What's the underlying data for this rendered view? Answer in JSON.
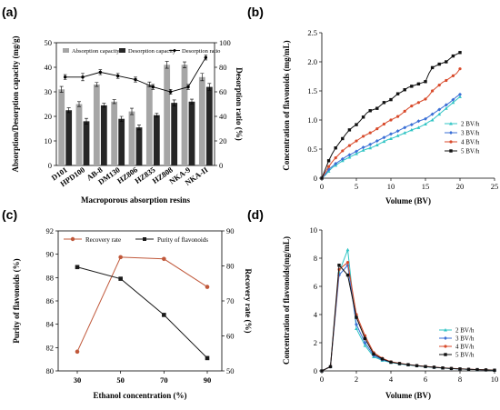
{
  "panels": {
    "a": "(a)",
    "b": "(b)",
    "c": "(c)",
    "d": "(d)"
  },
  "chart_data": [
    {
      "id": "a",
      "type": "bar",
      "categories": [
        "D101",
        "HPD100",
        "AB-8",
        "DM130",
        "HZ806",
        "HZ835",
        "HZ808",
        "NKA-9",
        "NKA-II"
      ],
      "series": [
        {
          "name": "Absorption capacity",
          "kind": "bar",
          "axis": "left",
          "color": "#a6a6a6",
          "values": [
            31,
            25,
            33,
            26,
            22,
            33,
            41,
            41,
            36
          ],
          "errors": [
            1.2,
            1.0,
            0.8,
            0.8,
            1.3,
            1.0,
            1.4,
            1.2,
            1.5
          ]
        },
        {
          "name": "Desorption capacity",
          "kind": "bar",
          "axis": "left",
          "color": "#262626",
          "values": [
            22.5,
            18,
            24.5,
            19,
            15.5,
            20.5,
            25.5,
            26,
            32
          ],
          "errors": [
            1.0,
            1.2,
            0.8,
            1.0,
            1.0,
            0.8,
            1.2,
            1.0,
            1.4
          ]
        },
        {
          "name": "Desorption ratio",
          "kind": "line",
          "axis": "right",
          "color": "#000000",
          "values": [
            72,
            72,
            76,
            73,
            70,
            64,
            60,
            64,
            88
          ],
          "errors": [
            2,
            3,
            2,
            2,
            2,
            2,
            2,
            2,
            2
          ]
        }
      ],
      "xlabel": "Macroporous absorption resins",
      "ylabel": "Absorption/Desorption capacity (mg/g)",
      "y2label": "Desorption ratio (%)",
      "ylim": [
        0,
        50
      ],
      "yticks": [
        "0",
        "10",
        "20",
        "30",
        "40",
        "50"
      ],
      "y2lim": [
        0,
        100
      ],
      "y2ticks": [
        "0",
        "20",
        "40",
        "60",
        "80",
        "100"
      ],
      "legend_placement": "top"
    },
    {
      "id": "b",
      "type": "line",
      "series": [
        {
          "name": "2 BV/h",
          "color": "#2fc4c4",
          "x": [
            0,
            0.5,
            1,
            1.5,
            2,
            2.5,
            3,
            3.5,
            4,
            4.5,
            5,
            5.5,
            6,
            6.5,
            7,
            7.5,
            8,
            8.5,
            9,
            9.5,
            10,
            10.5,
            11,
            11.5,
            12,
            12.5,
            13,
            13.5,
            14,
            14.5,
            15,
            15.5,
            16,
            16.5,
            17,
            17.5,
            18,
            18.5,
            19,
            19.5,
            20
          ],
          "y": [
            0,
            0.05,
            0.12,
            0.18,
            0.22,
            0.26,
            0.3,
            0.33,
            0.36,
            0.39,
            0.42,
            0.45,
            0.48,
            0.5,
            0.52,
            0.54,
            0.57,
            0.6,
            0.63,
            0.66,
            0.68,
            0.7,
            0.73,
            0.75,
            0.78,
            0.8,
            0.83,
            0.85,
            0.87,
            0.9,
            0.93,
            0.97,
            1.0,
            1.05,
            1.1,
            1.15,
            1.2,
            1.25,
            1.3,
            1.35,
            1.4
          ]
        },
        {
          "name": "3 BV/h",
          "color": "#3a6fd6",
          "x": [
            0,
            0.5,
            1,
            1.5,
            2,
            2.5,
            3,
            3.5,
            4,
            4.5,
            5,
            5.5,
            6,
            6.5,
            7,
            7.5,
            8,
            8.5,
            9,
            9.5,
            10,
            10.5,
            11,
            11.5,
            12,
            12.5,
            13,
            13.5,
            14,
            14.5,
            15,
            15.5,
            16,
            16.5,
            17,
            17.5,
            18,
            18.5,
            19,
            19.5,
            20
          ],
          "y": [
            0,
            0.07,
            0.15,
            0.2,
            0.25,
            0.29,
            0.33,
            0.37,
            0.4,
            0.43,
            0.46,
            0.5,
            0.53,
            0.55,
            0.58,
            0.61,
            0.64,
            0.67,
            0.7,
            0.73,
            0.76,
            0.78,
            0.81,
            0.84,
            0.87,
            0.9,
            0.92,
            0.95,
            0.98,
            1.0,
            1.02,
            1.06,
            1.1,
            1.14,
            1.18,
            1.22,
            1.26,
            1.3,
            1.35,
            1.4,
            1.44
          ]
        },
        {
          "name": "4 BV/h",
          "color": "#d84a2b",
          "x": [
            0,
            0.5,
            1,
            1.5,
            2,
            2.5,
            3,
            3.5,
            4,
            4.5,
            5,
            5.5,
            6,
            6.5,
            7,
            7.5,
            8,
            8.5,
            9,
            9.5,
            10,
            10.5,
            11,
            11.5,
            12,
            12.5,
            13,
            13.5,
            14,
            14.5,
            15,
            15.5,
            16,
            16.5,
            17,
            17.5,
            18,
            18.5,
            19,
            19.5,
            20
          ],
          "y": [
            0,
            0.1,
            0.2,
            0.28,
            0.35,
            0.41,
            0.47,
            0.52,
            0.56,
            0.6,
            0.64,
            0.68,
            0.72,
            0.75,
            0.78,
            0.81,
            0.85,
            0.89,
            0.93,
            0.97,
            1.0,
            1.03,
            1.06,
            1.1,
            1.15,
            1.2,
            1.24,
            1.27,
            1.3,
            1.33,
            1.36,
            1.42,
            1.5,
            1.55,
            1.6,
            1.65,
            1.68,
            1.72,
            1.76,
            1.8,
            1.88
          ]
        },
        {
          "name": "5 BV/h",
          "color": "#111111",
          "x": [
            0,
            0.5,
            1,
            1.5,
            2,
            2.5,
            3,
            3.5,
            4,
            4.5,
            5,
            5.5,
            6,
            6.5,
            7,
            7.5,
            8,
            8.5,
            9,
            9.5,
            10,
            10.5,
            11,
            11.5,
            12,
            12.5,
            13,
            13.5,
            14,
            14.5,
            15,
            15.5,
            16,
            16.5,
            17,
            17.5,
            18,
            18.5,
            19,
            19.5,
            20
          ],
          "y": [
            0,
            0.15,
            0.3,
            0.42,
            0.52,
            0.6,
            0.68,
            0.76,
            0.83,
            0.88,
            0.92,
            0.98,
            1.05,
            1.12,
            1.16,
            1.18,
            1.2,
            1.25,
            1.3,
            1.32,
            1.35,
            1.4,
            1.45,
            1.48,
            1.52,
            1.56,
            1.58,
            1.6,
            1.62,
            1.64,
            1.66,
            1.8,
            1.9,
            1.93,
            1.96,
            1.98,
            2.0,
            2.05,
            2.1,
            2.13,
            2.16
          ]
        }
      ],
      "xlabel": "Volume (BV)",
      "ylabel": "Concentration of flavonoids (mg/mL)",
      "xlim": [
        0,
        25
      ],
      "xticks": [
        "0",
        "5",
        "10",
        "15",
        "20",
        "25"
      ],
      "ylim": [
        0,
        2.5
      ],
      "yticks": [
        "0",
        "0.5",
        "1.0",
        "1.5",
        "2.0",
        "2.5"
      ],
      "legend_placement": "right"
    },
    {
      "id": "c",
      "type": "line",
      "categories": [
        "30",
        "50",
        "70",
        "90"
      ],
      "series": [
        {
          "name": "Recovery rate",
          "axis": "right",
          "color": "#c0583a",
          "values": [
            55.5,
            82.5,
            82,
            74
          ]
        },
        {
          "name": "Purity of flavonoids",
          "axis": "left",
          "color": "#1a1a1a",
          "values": [
            88.9,
            87.9,
            84.8,
            81.1
          ]
        }
      ],
      "xlabel": "Ethanol concentration (%)",
      "ylabel": "Purity of flavonoids (%)",
      "y2label": "Recovery rate (%)",
      "ylim": [
        80,
        92
      ],
      "yticks": [
        "80",
        "82",
        "84",
        "86",
        "88",
        "90",
        "92"
      ],
      "y2lim": [
        50,
        90
      ],
      "y2ticks": [
        "50",
        "60",
        "70",
        "80",
        "90"
      ],
      "legend_placement": "top"
    },
    {
      "id": "d",
      "type": "line",
      "series": [
        {
          "name": "2 BV/h",
          "color": "#2fc4c4",
          "x": [
            0,
            0.5,
            1,
            1.5,
            2,
            2.5,
            3,
            3.5,
            4,
            4.5,
            5,
            5.5,
            6,
            6.5,
            7,
            7.5,
            8,
            8.5,
            9,
            9.5,
            10
          ],
          "y": [
            0,
            0.3,
            7.0,
            8.6,
            3.0,
            1.8,
            1.0,
            0.75,
            0.6,
            0.5,
            0.42,
            0.36,
            0.3,
            0.25,
            0.2,
            0.17,
            0.14,
            0.11,
            0.09,
            0.07,
            0.05
          ]
        },
        {
          "name": "3 BV/h",
          "color": "#3a6fd6",
          "x": [
            0,
            0.5,
            1,
            1.5,
            2,
            2.5,
            3,
            3.5,
            4,
            4.5,
            5,
            5.5,
            6,
            6.5,
            7,
            7.5,
            8,
            8.5,
            9,
            9.5,
            10
          ],
          "y": [
            0,
            0.3,
            6.8,
            7.5,
            3.3,
            2.0,
            1.1,
            0.8,
            0.62,
            0.52,
            0.44,
            0.37,
            0.31,
            0.26,
            0.21,
            0.17,
            0.14,
            0.11,
            0.09,
            0.07,
            0.05
          ]
        },
        {
          "name": "4 BV/h",
          "color": "#d84a2b",
          "x": [
            0,
            0.5,
            1,
            1.5,
            2,
            2.5,
            3,
            3.5,
            4,
            4.5,
            5,
            5.5,
            6,
            6.5,
            7,
            7.5,
            8,
            8.5,
            9,
            9.5,
            10
          ],
          "y": [
            0,
            0.3,
            7.2,
            7.7,
            4.0,
            2.5,
            1.3,
            0.9,
            0.65,
            0.54,
            0.45,
            0.38,
            0.32,
            0.27,
            0.22,
            0.18,
            0.15,
            0.12,
            0.1,
            0.08,
            0.06
          ]
        },
        {
          "name": "5 BV/h",
          "color": "#111111",
          "x": [
            0,
            0.5,
            1,
            1.5,
            2,
            2.5,
            3,
            3.5,
            4,
            4.5,
            5,
            5.5,
            6,
            6.5,
            7,
            7.5,
            8,
            8.5,
            9,
            9.5,
            10
          ],
          "y": [
            0,
            0.3,
            7.5,
            6.8,
            3.8,
            2.3,
            1.2,
            0.85,
            0.62,
            0.52,
            0.44,
            0.37,
            0.31,
            0.26,
            0.21,
            0.17,
            0.14,
            0.11,
            0.09,
            0.07,
            0.05
          ]
        }
      ],
      "xlabel": "Volume (BV)",
      "ylabel": "Concentration of flavonoids(mg/mL)",
      "xlim": [
        0,
        10
      ],
      "xticks": [
        "0",
        "2",
        "4",
        "6",
        "8",
        "10"
      ],
      "ylim": [
        0,
        10
      ],
      "yticks": [
        "0",
        "2",
        "4",
        "6",
        "8",
        "10"
      ],
      "legend_placement": "right"
    }
  ]
}
